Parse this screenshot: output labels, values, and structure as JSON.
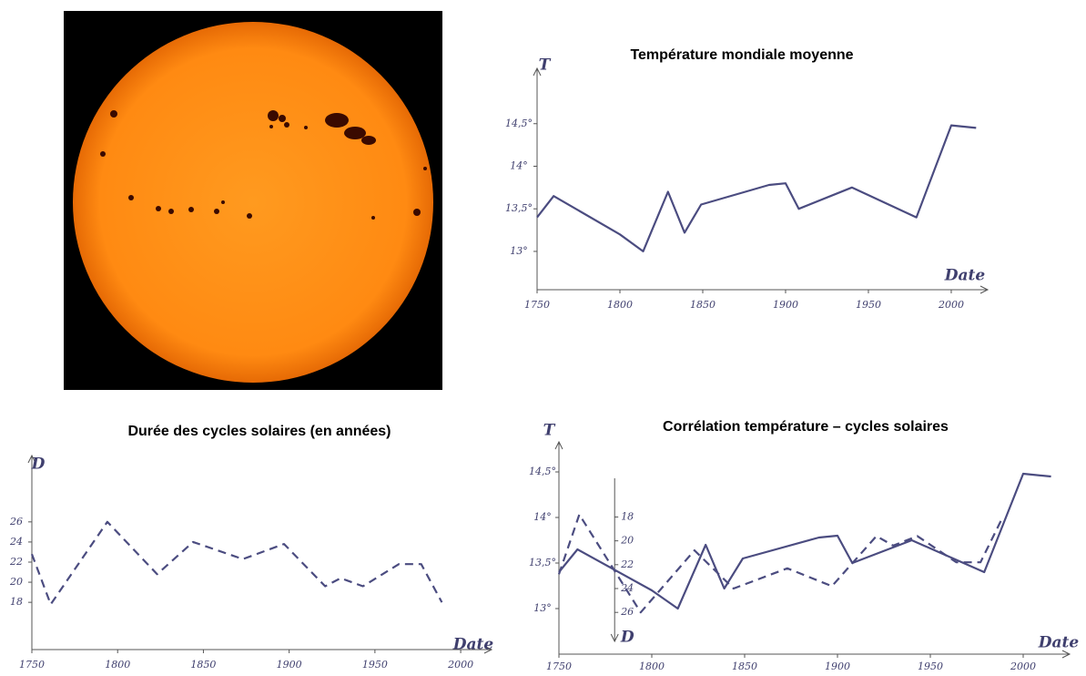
{
  "chart_data": [
    {
      "type": "line",
      "title": "Température mondiale moyenne",
      "y_label": "T",
      "x_label": "Date",
      "x": [
        1750,
        1760,
        1800,
        1814,
        1829,
        1839,
        1849,
        1890,
        1900,
        1908,
        1940,
        1979,
        2000,
        2015
      ],
      "values": [
        13.4,
        13.65,
        13.2,
        13.0,
        13.7,
        13.22,
        13.55,
        13.78,
        13.8,
        13.5,
        13.75,
        13.4,
        14.48,
        14.45
      ],
      "color": "#4b4c80",
      "dashed": false,
      "xlim": [
        1750,
        2022
      ],
      "xticks": [
        1750,
        1800,
        1850,
        1900,
        1950,
        2000
      ],
      "ylim": [
        12.55,
        15.15
      ],
      "yticks": [
        {
          "value": 13,
          "label": "13°"
        },
        {
          "value": 13.5,
          "label": "13,5°"
        },
        {
          "value": 14,
          "label": "14°"
        },
        {
          "value": 14.5,
          "label": "14,5°"
        }
      ]
    },
    {
      "type": "line",
      "title": "Durée des cycles solaires (en années)",
      "y_label": "D",
      "x_label": "Date",
      "x": [
        1750,
        1761,
        1794,
        1823,
        1844,
        1873,
        1897,
        1921,
        1930,
        1943,
        1964,
        1977,
        1989
      ],
      "values": [
        22.8,
        17.8,
        26,
        20.8,
        24,
        22.3,
        23.8,
        19.6,
        20.4,
        19.6,
        21.8,
        21.8,
        18
      ],
      "color": "#4b4c80",
      "dashed": true,
      "xlim": [
        1750,
        2018
      ],
      "xticks": [
        1750,
        1800,
        1850,
        1900,
        1950,
        2000
      ],
      "ylim": [
        13.3,
        32.6
      ],
      "yticks": [
        18,
        20,
        22,
        24,
        26
      ]
    },
    {
      "type": "line",
      "title": "Corrélation température – cycles solaires",
      "y_label": "T",
      "y2_label": "D",
      "x_label": "Date",
      "series": [
        {
          "color": "#4b4c80",
          "dashed": false,
          "x": [
            1750,
            1760,
            1800,
            1814,
            1829,
            1839,
            1849,
            1890,
            1900,
            1908,
            1940,
            1979,
            2000,
            2015
          ],
          "values": [
            13.4,
            13.65,
            13.2,
            13.0,
            13.7,
            13.22,
            13.55,
            13.78,
            13.8,
            13.5,
            13.75,
            13.4,
            14.48,
            14.45
          ]
        },
        {
          "color": "#4b4c80",
          "dashed": true,
          "axis": "y2",
          "x": [
            1750,
            1761,
            1794,
            1823,
            1844,
            1873,
            1897,
            1921,
            1930,
            1943,
            1964,
            1977,
            1989
          ],
          "values": [
            22.8,
            17.8,
            26,
            20.8,
            24,
            22.3,
            23.8,
            19.6,
            20.4,
            19.6,
            21.8,
            21.8,
            18
          ]
        }
      ],
      "xlim": [
        1750,
        2025
      ],
      "xticks": [
        1750,
        1800,
        1850,
        1900,
        1950,
        2000
      ],
      "ylim": [
        12.5,
        14.83
      ],
      "yticks": [
        {
          "value": 13,
          "label": "13°"
        },
        {
          "value": 13.5,
          "label": "13,5°"
        },
        {
          "value": 14,
          "label": "14°"
        },
        {
          "value": 14.5,
          "label": "14,5°"
        }
      ],
      "y2lim": [
        29.5,
        11.7
      ],
      "y2ticks": [
        18,
        20,
        22,
        24,
        26
      ]
    }
  ]
}
